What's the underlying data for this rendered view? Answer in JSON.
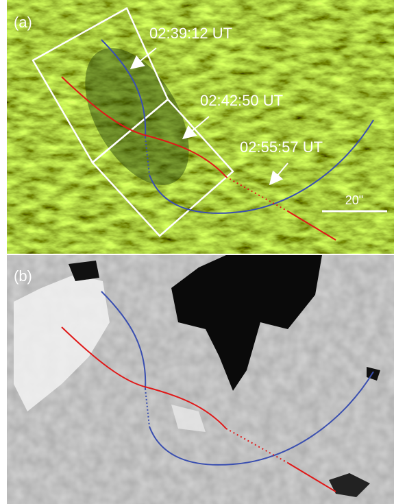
{
  "panels": [
    {
      "label": "(a)",
      "annotations": [
        "02:39:12 UT",
        "02:42:50 UT",
        "02:55:57 UT"
      ],
      "scale_label": "20\""
    },
    {
      "label": "(b)"
    }
  ]
}
